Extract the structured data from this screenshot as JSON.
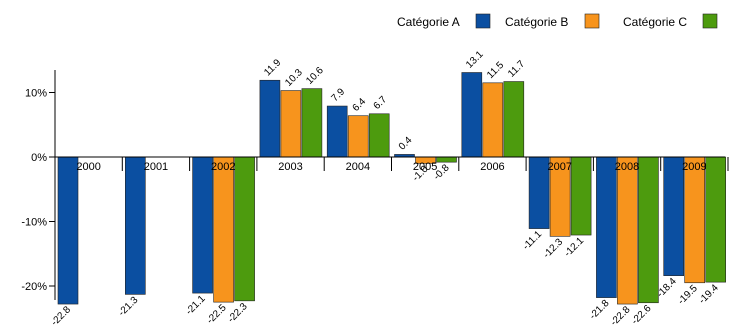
{
  "chart_data": {
    "type": "bar",
    "categories": [
      "2000",
      "2001",
      "2002",
      "2003",
      "2004",
      "2005",
      "2006",
      "2007",
      "2008",
      "2009"
    ],
    "series": [
      {
        "name": "Catégorie A",
        "color": "#0b4fa1",
        "values": [
          -22.8,
          -21.3,
          -21.1,
          11.9,
          7.9,
          0.4,
          13.1,
          -11.1,
          -21.8,
          -18.4
        ]
      },
      {
        "name": "Catégorie B",
        "color": "#f7941d",
        "values": [
          null,
          null,
          -22.5,
          10.3,
          6.4,
          -1.0,
          11.5,
          -12.3,
          -22.8,
          -19.5
        ]
      },
      {
        "name": "Catégorie C",
        "color": "#4d9b0e",
        "values": [
          null,
          null,
          -22.3,
          10.6,
          6.7,
          -0.8,
          11.7,
          -12.1,
          -22.6,
          -19.4
        ]
      }
    ],
    "y_ticks": [
      "10%",
      "0%",
      "-10%",
      "-20%"
    ],
    "y_tick_values": [
      10,
      0,
      -10,
      -20
    ],
    "ylim": [
      -25,
      14
    ],
    "legend_position": "top-right",
    "grid": false
  }
}
